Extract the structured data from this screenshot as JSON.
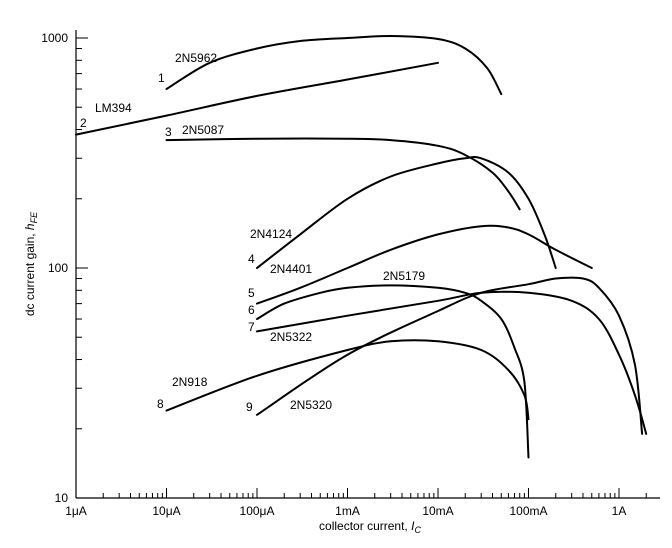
{
  "chart_data": {
    "type": "line",
    "title": "",
    "xlabel": "collector current, ",
    "xlabel_symbol": "I",
    "xlabel_sub": "C",
    "ylabel": "dc current gain, ",
    "ylabel_symbol": "h",
    "ylabel_sub": "FE",
    "x_scale": "log",
    "y_scale": "log",
    "xlim": [
      1e-06,
      2.0
    ],
    "ylim": [
      10,
      1000
    ],
    "x_ticks": [
      {
        "value": 1e-06,
        "label": "1μA"
      },
      {
        "value": 1e-05,
        "label": "10μA"
      },
      {
        "value": 0.0001,
        "label": "100μA"
      },
      {
        "value": 0.001,
        "label": "1mA"
      },
      {
        "value": 0.01,
        "label": "10mA"
      },
      {
        "value": 0.1,
        "label": "100mA"
      },
      {
        "value": 1.0,
        "label": "1A"
      }
    ],
    "y_ticks": [
      {
        "value": 10,
        "label": "10"
      },
      {
        "value": 100,
        "label": "100"
      },
      {
        "value": 1000,
        "label": "1000"
      }
    ],
    "grid": false,
    "legend": "none",
    "series": [
      {
        "number": "1",
        "name": "2N5962",
        "points": [
          [
            1e-05,
            600
          ],
          [
            3e-05,
            780
          ],
          [
            0.0001,
            900
          ],
          [
            0.0003,
            970
          ],
          [
            0.001,
            1000
          ],
          [
            0.003,
            1020
          ],
          [
            0.01,
            990
          ],
          [
            0.02,
            900
          ],
          [
            0.035,
            740
          ],
          [
            0.05,
            570
          ]
        ]
      },
      {
        "number": "2",
        "name": "LM394",
        "points": [
          [
            1e-06,
            380
          ],
          [
            1e-05,
            460
          ],
          [
            0.0001,
            560
          ],
          [
            0.001,
            660
          ],
          [
            0.01,
            780
          ]
        ]
      },
      {
        "number": "3",
        "name": "2N5087",
        "points": [
          [
            1e-05,
            360
          ],
          [
            0.0001,
            365
          ],
          [
            0.001,
            365
          ],
          [
            0.003,
            360
          ],
          [
            0.01,
            340
          ],
          [
            0.02,
            310
          ],
          [
            0.04,
            260
          ],
          [
            0.06,
            215
          ],
          [
            0.08,
            180
          ]
        ]
      },
      {
        "number": "4",
        "name": "2N4124",
        "points": [
          [
            0.0001,
            100
          ],
          [
            0.0003,
            140
          ],
          [
            0.001,
            200
          ],
          [
            0.003,
            250
          ],
          [
            0.01,
            285
          ],
          [
            0.02,
            300
          ],
          [
            0.03,
            300
          ],
          [
            0.06,
            260
          ],
          [
            0.1,
            200
          ],
          [
            0.15,
            140
          ],
          [
            0.2,
            100
          ]
        ]
      },
      {
        "number": "5",
        "name": "2N4401",
        "points": [
          [
            0.0001,
            70
          ],
          [
            0.0003,
            82
          ],
          [
            0.001,
            100
          ],
          [
            0.003,
            120
          ],
          [
            0.01,
            140
          ],
          [
            0.03,
            152
          ],
          [
            0.06,
            150
          ],
          [
            0.1,
            140
          ],
          [
            0.2,
            120
          ],
          [
            0.5,
            100
          ]
        ]
      },
      {
        "number": "6",
        "name": "2N5179",
        "points": [
          [
            0.0001,
            60
          ],
          [
            0.0002,
            70
          ],
          [
            0.0005,
            78
          ],
          [
            0.001,
            82
          ],
          [
            0.003,
            84
          ],
          [
            0.01,
            82
          ],
          [
            0.02,
            78
          ],
          [
            0.03,
            72
          ],
          [
            0.05,
            60
          ],
          [
            0.07,
            45
          ],
          [
            0.09,
            32
          ],
          [
            0.1,
            15
          ]
        ]
      },
      {
        "number": "7",
        "name": "2N5322",
        "points": [
          [
            0.0001,
            53
          ],
          [
            0.001,
            62
          ],
          [
            0.01,
            72
          ],
          [
            0.03,
            78
          ],
          [
            0.1,
            78
          ],
          [
            0.3,
            72
          ],
          [
            0.6,
            60
          ],
          [
            1.0,
            42
          ],
          [
            1.5,
            28
          ],
          [
            2.0,
            19
          ]
        ]
      },
      {
        "number": "8",
        "name": "2N918",
        "points": [
          [
            1e-05,
            24
          ],
          [
            0.0001,
            34
          ],
          [
            0.001,
            44
          ],
          [
            0.003,
            48
          ],
          [
            0.01,
            48
          ],
          [
            0.03,
            44
          ],
          [
            0.06,
            36
          ],
          [
            0.09,
            28
          ],
          [
            0.1,
            22
          ]
        ]
      },
      {
        "number": "9",
        "name": "2N5320",
        "points": [
          [
            0.0001,
            23
          ],
          [
            0.001,
            42
          ],
          [
            0.01,
            65
          ],
          [
            0.03,
            78
          ],
          [
            0.1,
            85
          ],
          [
            0.2,
            90
          ],
          [
            0.4,
            90
          ],
          [
            0.6,
            82
          ],
          [
            1.0,
            62
          ],
          [
            1.5,
            38
          ],
          [
            1.8,
            19
          ]
        ]
      }
    ]
  }
}
